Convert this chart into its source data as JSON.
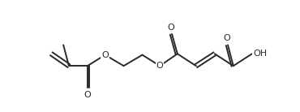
{
  "bg_color": "#ffffff",
  "line_color": "#2a2a2a",
  "line_width": 1.4,
  "font_size": 8.0,
  "fig_width": 3.7,
  "fig_height": 1.38,
  "dpi": 100,
  "xlim": [
    0,
    10.0
  ],
  "ylim": [
    1.5,
    6.5
  ]
}
